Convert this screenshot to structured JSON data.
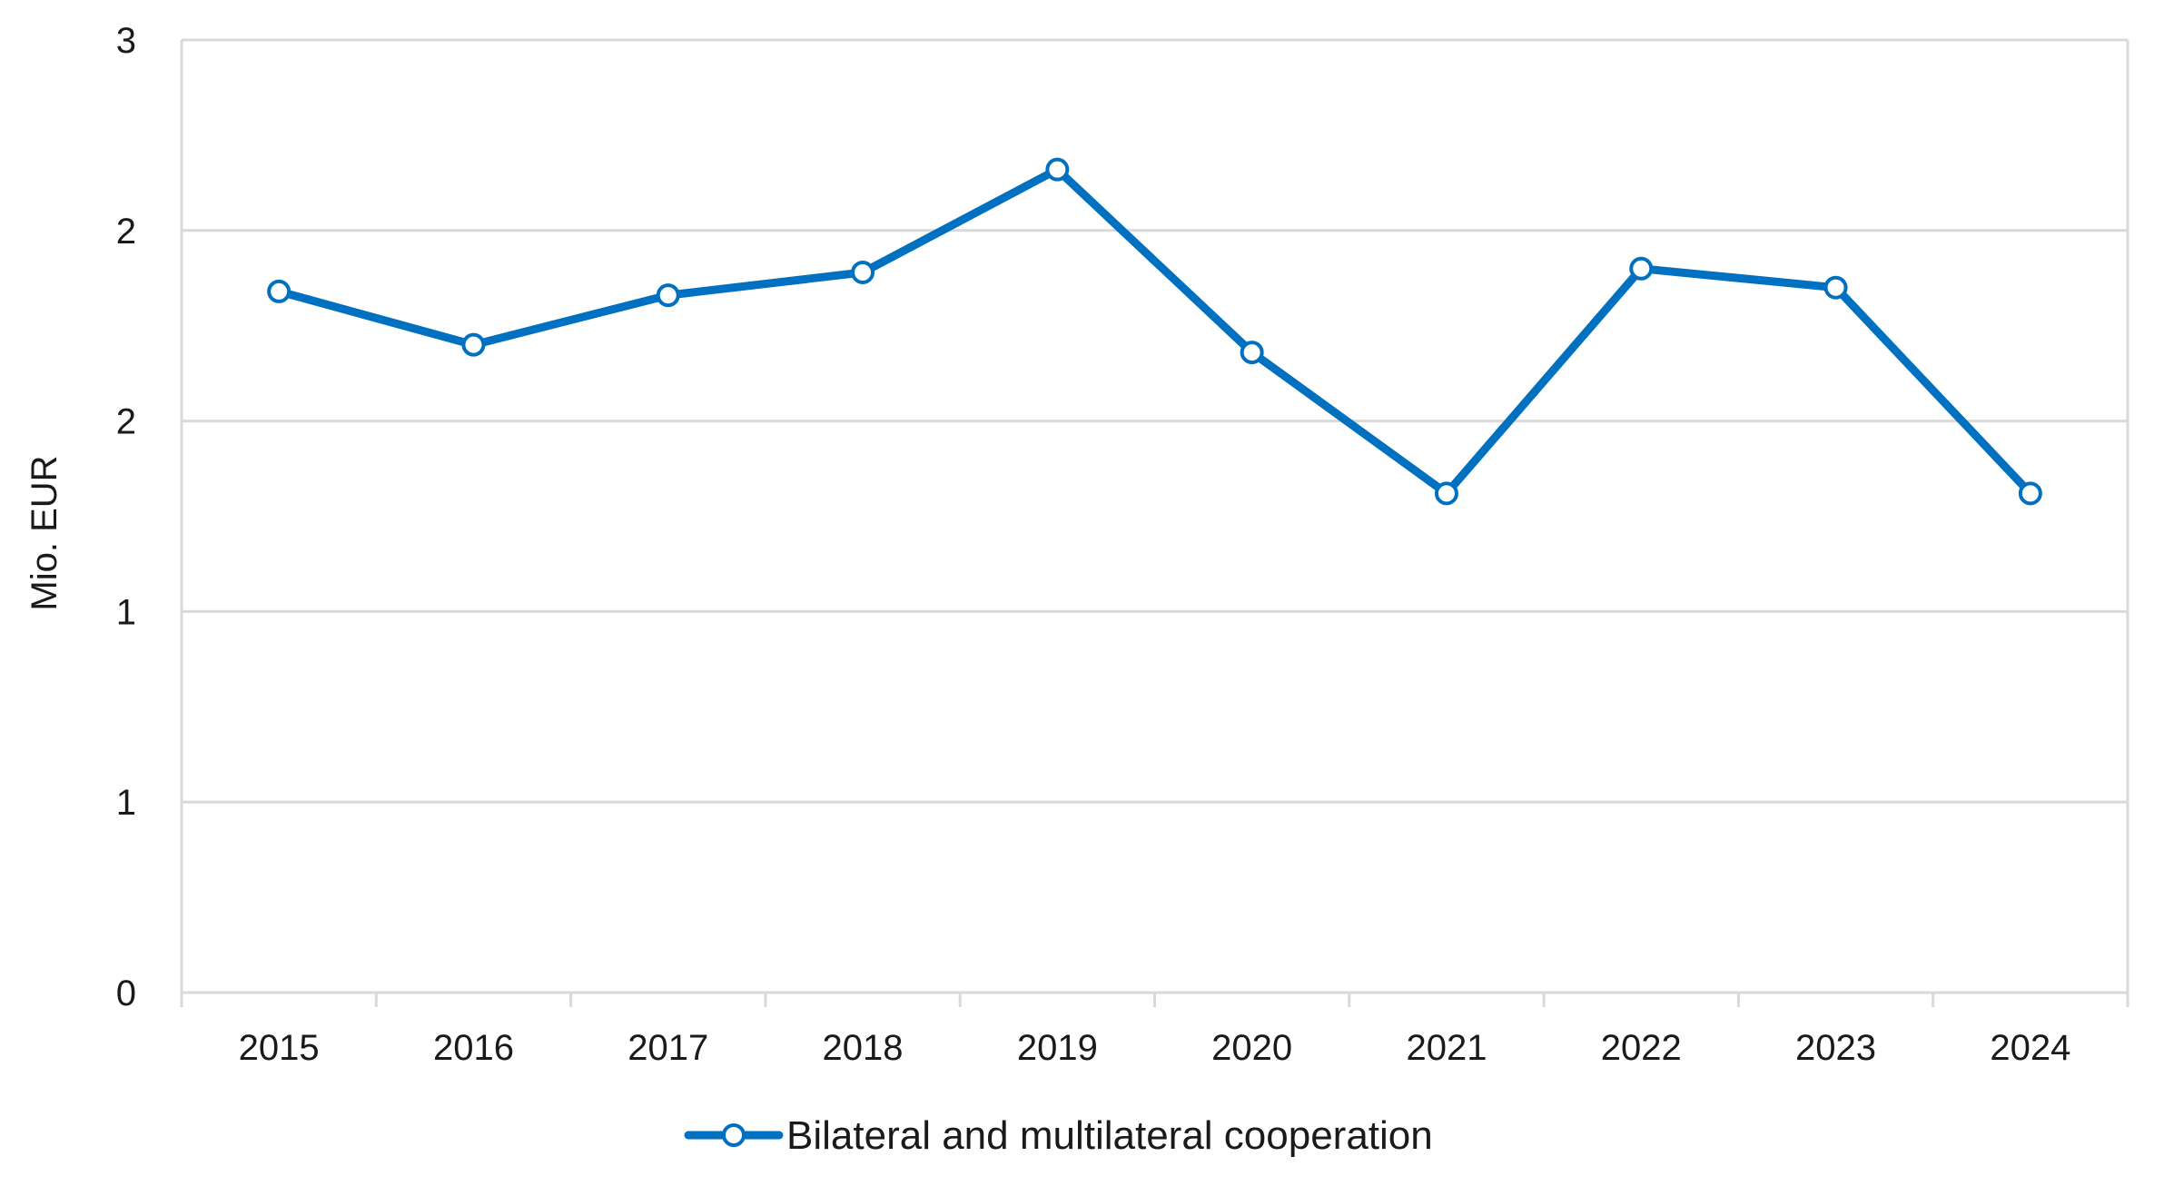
{
  "chart_data": {
    "type": "line",
    "title": "",
    "xlabel": "",
    "ylabel": "Mio. EUR",
    "categories": [
      "2015",
      "2016",
      "2017",
      "2018",
      "2019",
      "2020",
      "2021",
      "2022",
      "2023",
      "2024"
    ],
    "series": [
      {
        "name": "Bilateral and multilateral cooperation",
        "color": "#0070c0",
        "values": [
          1.84,
          1.7,
          1.83,
          1.89,
          2.16,
          1.68,
          1.31,
          1.9,
          1.85,
          1.31
        ]
      }
    ],
    "ylim": [
      0,
      2.5
    ],
    "y_ticks": [
      0,
      0.5,
      1,
      1.5,
      2,
      2.5
    ],
    "y_tick_labels": [
      "0",
      "1",
      "1",
      "2",
      "2",
      "3"
    ],
    "grid": true,
    "legend_position": "bottom"
  }
}
